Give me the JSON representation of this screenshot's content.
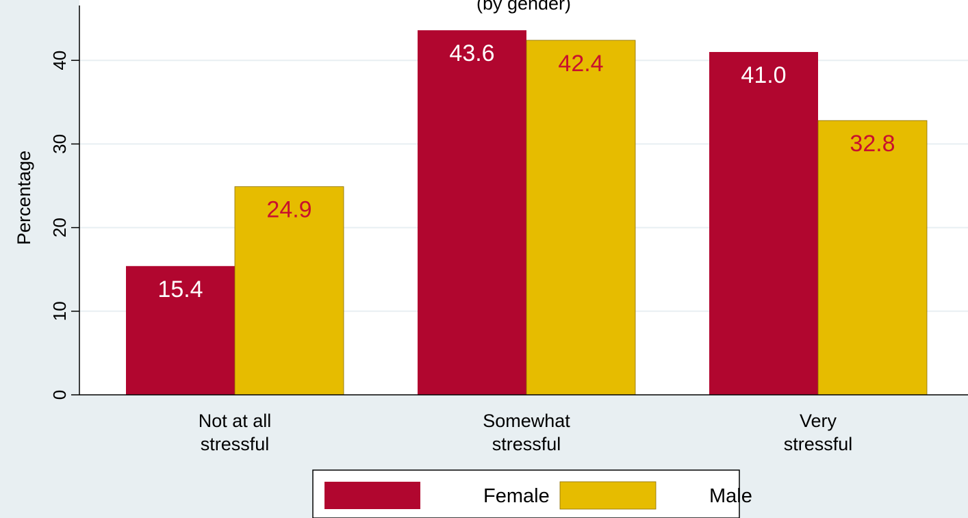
{
  "chart_data": {
    "type": "bar",
    "title": "(by gender)",
    "ylabel": "Percentage",
    "xlabel": "",
    "ylim": [
      0,
      46.5
    ],
    "yticks": [
      0,
      10,
      20,
      30,
      40
    ],
    "grid": true,
    "legend_position": "bottom-center",
    "categories": [
      [
        "Not at all",
        "stressful"
      ],
      [
        "Somewhat",
        "stressful"
      ],
      [
        "Very",
        "stressful"
      ]
    ],
    "series": [
      {
        "name": "Female",
        "color": "#b1062f",
        "label_color": "#ffffff",
        "values": [
          15.4,
          43.6,
          41.0
        ]
      },
      {
        "name": "Male",
        "color": "#e6bc00",
        "label_color": "#c8102e",
        "values": [
          24.9,
          42.4,
          32.8
        ]
      }
    ],
    "value_labels": [
      [
        "15.4",
        "43.6",
        "41.0"
      ],
      [
        "24.9",
        "42.4",
        "32.8"
      ]
    ],
    "colors": {
      "background": "#e8eff2",
      "plot_background": "#ffffff",
      "gridline": "#e8eff2",
      "axis": "#000000"
    }
  }
}
